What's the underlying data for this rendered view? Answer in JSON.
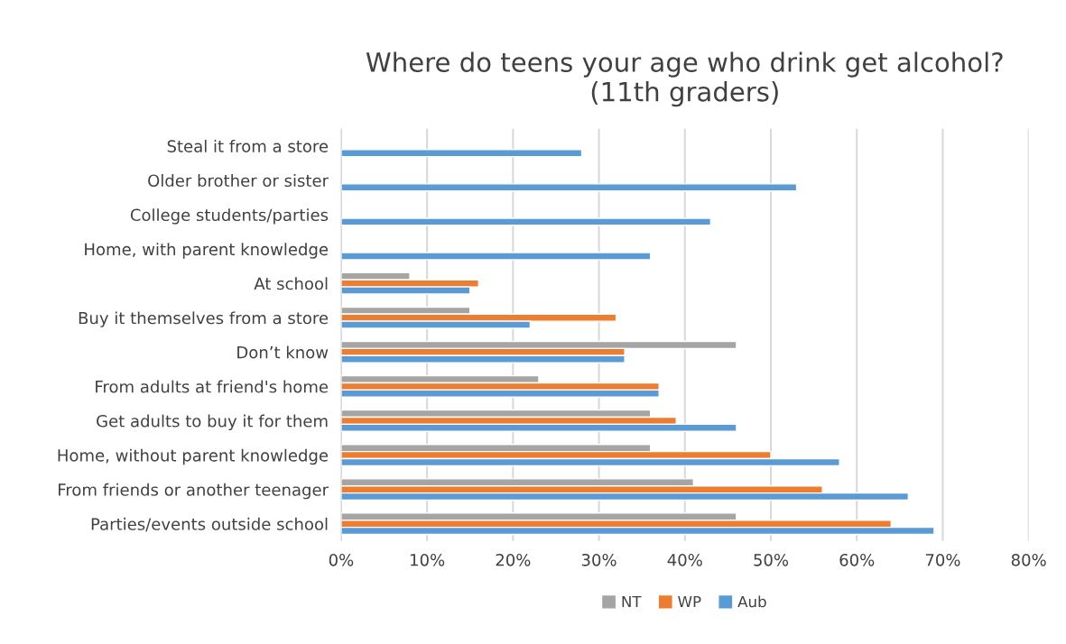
{
  "chart_data": {
    "type": "bar",
    "orientation": "horizontal",
    "title": "Where do teens your age who drink get alcohol?\n(11th graders)",
    "categories": [
      "Steal it from a store",
      "Older brother or sister",
      "College students/parties",
      "Home, with parent knowledge",
      "At school",
      "Buy it themselves from a store",
      "Don’t know",
      "From adults at friend's home",
      "Get adults to buy it for them",
      "Home, without parent knowledge",
      "From friends or another teenager",
      "Parties/events outside school"
    ],
    "series": [
      {
        "name": "NT",
        "color": "#a5a5a5",
        "values": [
          null,
          null,
          null,
          null,
          8,
          15,
          46,
          23,
          36,
          36,
          41,
          46
        ]
      },
      {
        "name": "WP",
        "color": "#ed7d31",
        "values": [
          null,
          null,
          null,
          null,
          16,
          32,
          33,
          37,
          39,
          50,
          56,
          64
        ]
      },
      {
        "name": "Aub",
        "color": "#5b9bd5",
        "values": [
          28,
          53,
          43,
          36,
          15,
          22,
          33,
          37,
          46,
          58,
          66,
          69
        ]
      }
    ],
    "xlim": [
      0,
      80
    ],
    "xticks": [
      {
        "value": 0,
        "label": "0%"
      },
      {
        "value": 10,
        "label": "10%"
      },
      {
        "value": 20,
        "label": "20%"
      },
      {
        "value": 30,
        "label": "30%"
      },
      {
        "value": 40,
        "label": "40%"
      },
      {
        "value": 50,
        "label": "50%"
      },
      {
        "value": 60,
        "label": "60%"
      },
      {
        "value": 70,
        "label": "70%"
      },
      {
        "value": 80,
        "label": "80%"
      }
    ],
    "grid": "x",
    "legend": "bottom"
  }
}
